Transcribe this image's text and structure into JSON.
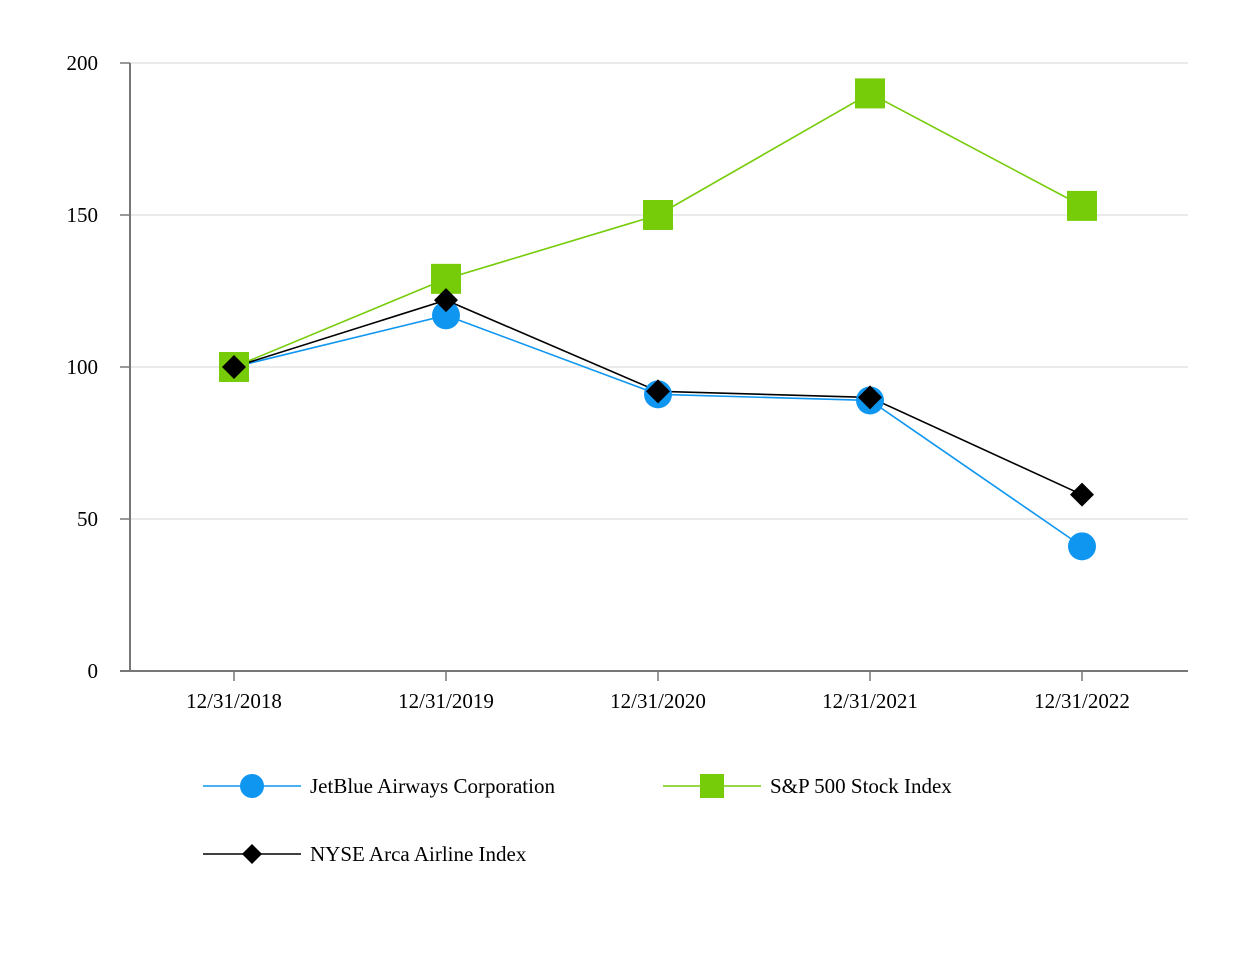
{
  "chart_data": {
    "type": "line",
    "title": "",
    "xlabel": "",
    "ylabel": "",
    "categories": [
      "12/31/2018",
      "12/31/2019",
      "12/31/2020",
      "12/31/2021",
      "12/31/2022"
    ],
    "ylim": [
      0,
      200
    ],
    "yticks": [
      0,
      50,
      100,
      150,
      200
    ],
    "grid": true,
    "legend_position": "bottom",
    "series": [
      {
        "name": "JetBlue Airways Corporation",
        "marker": "circle",
        "color": "#0f96f0",
        "values": [
          100,
          117,
          91,
          89,
          41
        ]
      },
      {
        "name": "S&P 500 Stock Index",
        "marker": "square",
        "color": "#76cc08",
        "values": [
          100,
          129,
          150,
          190,
          153
        ]
      },
      {
        "name": "NYSE Arca Airline Index",
        "marker": "diamond",
        "color": "#000000",
        "values": [
          100,
          122,
          92,
          90,
          58
        ]
      }
    ]
  }
}
